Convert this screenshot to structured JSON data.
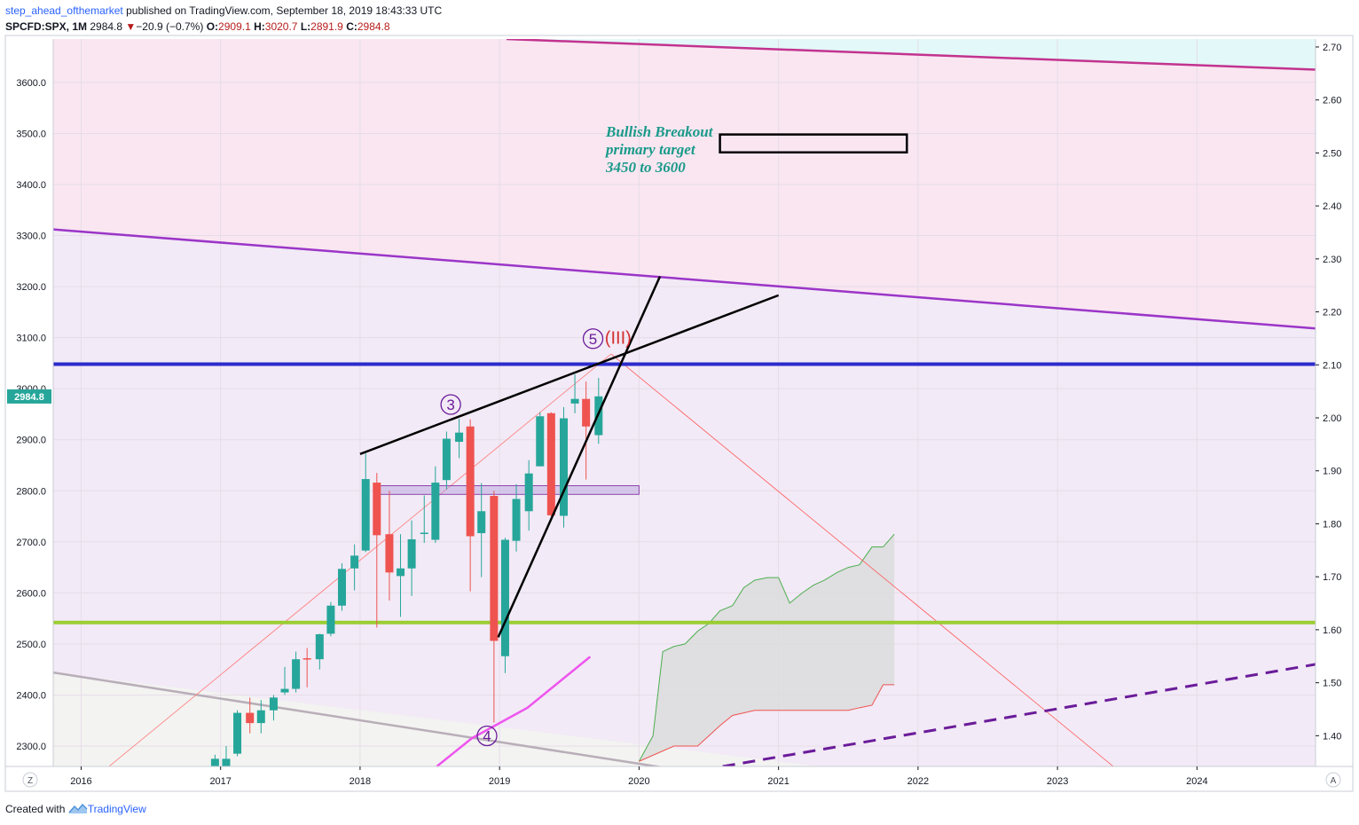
{
  "header": {
    "author": "step_ahead_ofthemarket",
    "published": "published on TradingView.com, September 18, 2019 18:43:33 UTC",
    "symbol": "SPCFD:SPX, 1M",
    "last": "2984.8",
    "change_arrow": "▼",
    "change": "−20.9 (−0.7%)",
    "o_label": "O:",
    "o_value": "2909.1",
    "h_label": "H:",
    "h_value": "3020.7",
    "l_label": "L:",
    "l_value": "2891.9",
    "c_label": "C:",
    "c_value": "2984.8"
  },
  "footer": {
    "created_with": "Created with",
    "brand": "TradingView",
    "logo_icon": "tradingview-logo-icon"
  },
  "buttons": {
    "left": "Z",
    "right": "A"
  },
  "chart_data": {
    "type": "candlestick",
    "timeframe": "1M",
    "xlabel": "",
    "ylabel": "",
    "x_ticks": [
      "2016",
      "2017",
      "2018",
      "2019",
      "2020",
      "2021",
      "2022",
      "2023",
      "2024"
    ],
    "y_ticks_left": [
      "2300.0",
      "2400.0",
      "2500.0",
      "2600.0",
      "2700.0",
      "2800.0",
      "2900.0",
      "3000.0",
      "3100.0",
      "3200.0",
      "3300.0",
      "3400.0",
      "3500.0",
      "3600.0"
    ],
    "y_ticks_right": [
      "1.40",
      "1.50",
      "1.60",
      "1.70",
      "1.80",
      "1.90",
      "2.00",
      "2.10",
      "2.20",
      "2.30",
      "2.40",
      "2.50",
      "2.60",
      "2.70"
    ],
    "ylim_left": [
      2260,
      3685
    ],
    "ylim_right": [
      1.342,
      2.715
    ],
    "xlim": [
      2015.8,
      2024.85
    ],
    "last_price_label": "2984.8",
    "colors": {
      "up": "#26a69a",
      "down": "#ef5350",
      "wick_up": "#26a69a",
      "wick_down": "#ef5350"
    },
    "candles": [
      {
        "t": 2016.96,
        "o": 2260,
        "h": 2283,
        "l": 2260,
        "c": 2275
      },
      {
        "t": 2017.04,
        "o": 2260,
        "h": 2300,
        "l": 2260,
        "c": 2275
      },
      {
        "t": 2017.12,
        "o": 2285,
        "h": 2370,
        "l": 2280,
        "c": 2365
      },
      {
        "t": 2017.21,
        "o": 2365,
        "h": 2395,
        "l": 2325,
        "c": 2345
      },
      {
        "t": 2017.29,
        "o": 2345,
        "h": 2390,
        "l": 2325,
        "c": 2370
      },
      {
        "t": 2017.38,
        "o": 2370,
        "h": 2400,
        "l": 2350,
        "c": 2395
      },
      {
        "t": 2017.46,
        "o": 2405,
        "h": 2455,
        "l": 2400,
        "c": 2412
      },
      {
        "t": 2017.54,
        "o": 2412,
        "h": 2485,
        "l": 2405,
        "c": 2470
      },
      {
        "t": 2017.62,
        "o": 2472,
        "h": 2492,
        "l": 2415,
        "c": 2470
      },
      {
        "t": 2017.71,
        "o": 2470,
        "h": 2520,
        "l": 2450,
        "c": 2519
      },
      {
        "t": 2017.79,
        "o": 2520,
        "h": 2582,
        "l": 2515,
        "c": 2575
      },
      {
        "t": 2017.87,
        "o": 2575,
        "h": 2658,
        "l": 2565,
        "c": 2647
      },
      {
        "t": 2017.96,
        "o": 2648,
        "h": 2695,
        "l": 2605,
        "c": 2673
      },
      {
        "t": 2018.04,
        "o": 2683,
        "h": 2873,
        "l": 2680,
        "c": 2823
      },
      {
        "t": 2018.12,
        "o": 2816,
        "h": 2835,
        "l": 2532,
        "c": 2713
      },
      {
        "t": 2018.21,
        "o": 2715,
        "h": 2800,
        "l": 2585,
        "c": 2640
      },
      {
        "t": 2018.29,
        "o": 2633,
        "h": 2715,
        "l": 2553,
        "c": 2648
      },
      {
        "t": 2018.37,
        "o": 2648,
        "h": 2742,
        "l": 2594,
        "c": 2705
      },
      {
        "t": 2018.46,
        "o": 2718,
        "h": 2791,
        "l": 2698,
        "c": 2718
      },
      {
        "t": 2018.54,
        "o": 2704,
        "h": 2848,
        "l": 2698,
        "c": 2816
      },
      {
        "t": 2018.62,
        "o": 2821,
        "h": 2916,
        "l": 2803,
        "c": 2902
      },
      {
        "t": 2018.71,
        "o": 2896,
        "h": 2941,
        "l": 2864,
        "c": 2914
      },
      {
        "t": 2018.79,
        "o": 2926,
        "h": 2940,
        "l": 2603,
        "c": 2711
      },
      {
        "t": 2018.87,
        "o": 2717,
        "h": 2815,
        "l": 2631,
        "c": 2760
      },
      {
        "t": 2018.96,
        "o": 2790,
        "h": 2800,
        "l": 2346,
        "c": 2506
      },
      {
        "t": 2019.04,
        "o": 2476,
        "h": 2708,
        "l": 2443,
        "c": 2704
      },
      {
        "t": 2019.12,
        "o": 2702,
        "h": 2813,
        "l": 2681,
        "c": 2784
      },
      {
        "t": 2019.21,
        "o": 2760,
        "h": 2860,
        "l": 2722,
        "c": 2834
      },
      {
        "t": 2019.29,
        "o": 2848,
        "h": 2954,
        "l": 2848,
        "c": 2946
      },
      {
        "t": 2019.37,
        "o": 2952,
        "h": 2954,
        "l": 2750,
        "c": 2752
      },
      {
        "t": 2019.46,
        "o": 2751,
        "h": 2964,
        "l": 2728,
        "c": 2942
      },
      {
        "t": 2019.54,
        "o": 2971,
        "h": 3028,
        "l": 2952,
        "c": 2980
      },
      {
        "t": 2019.62,
        "o": 2980,
        "h": 3014,
        "l": 2822,
        "c": 2926
      },
      {
        "t": 2019.71,
        "o": 2909,
        "h": 3021,
        "l": 2892,
        "c": 2985
      }
    ],
    "cloud": {
      "upper": [
        [
          2020.0,
          2270
        ],
        [
          2020.1,
          2320
        ],
        [
          2020.17,
          2485
        ],
        [
          2020.25,
          2495
        ],
        [
          2020.33,
          2500
        ],
        [
          2020.42,
          2525
        ],
        [
          2020.5,
          2540
        ],
        [
          2020.58,
          2565
        ],
        [
          2020.67,
          2575
        ],
        [
          2020.75,
          2610
        ],
        [
          2020.83,
          2625
        ],
        [
          2020.92,
          2630
        ],
        [
          2021.0,
          2630
        ],
        [
          2021.08,
          2580
        ],
        [
          2021.17,
          2600
        ],
        [
          2021.25,
          2615
        ],
        [
          2021.33,
          2625
        ],
        [
          2021.42,
          2640
        ],
        [
          2021.5,
          2650
        ],
        [
          2021.58,
          2655
        ],
        [
          2021.67,
          2690
        ],
        [
          2021.75,
          2690
        ],
        [
          2021.83,
          2715
        ]
      ],
      "lower": [
        [
          2020.0,
          2270
        ],
        [
          2020.25,
          2300
        ],
        [
          2020.42,
          2300
        ],
        [
          2020.58,
          2340
        ],
        [
          2020.67,
          2360
        ],
        [
          2020.83,
          2370
        ],
        [
          2021.0,
          2370
        ],
        [
          2021.33,
          2370
        ],
        [
          2021.5,
          2370
        ],
        [
          2021.58,
          2375
        ],
        [
          2021.67,
          2380
        ],
        [
          2021.75,
          2420
        ],
        [
          2021.83,
          2420
        ]
      ]
    },
    "horizontal_levels": [
      {
        "value": 3048,
        "color": "#2b2bcc"
      },
      {
        "value": 2542,
        "color": "#9acd32"
      }
    ],
    "trend_lines": [
      {
        "from": [
          2018.0,
          2872
        ],
        "to": [
          2021.0,
          3183
        ],
        "color": "#000000",
        "width": 2.5
      },
      {
        "from": [
          2018.99,
          2513
        ],
        "to": [
          2020.15,
          3220
        ],
        "color": "#000000",
        "width": 2.5
      },
      {
        "from": [
          2015.8,
          3312
        ],
        "to": [
          2024.85,
          3118
        ],
        "color": "#9b35c8",
        "width": 2.5
      },
      {
        "from": [
          2019.05,
          3685
        ],
        "to": [
          2024.85,
          3625
        ],
        "color": "#c2338f",
        "width": 2.5
      },
      {
        "from": [
          2015.8,
          2444
        ],
        "to": [
          2021.3,
          2210
        ],
        "color": "#b8aeb8",
        "width": 2.5
      },
      {
        "from": [
          2016.2,
          2260
        ],
        "to": [
          2019.8,
          3068
        ],
        "color": "#ff7a7a",
        "width": 0.8
      },
      {
        "from": [
          2019.8,
          3068
        ],
        "to": [
          2023.4,
          2260
        ],
        "color": "#ff5a5a",
        "width": 0.8
      }
    ],
    "dashed_lines": [
      {
        "from": [
          2020.6,
          2260
        ],
        "to": [
          2024.85,
          2460
        ],
        "color": "#6a1b9a",
        "width": 3
      }
    ],
    "moving_average": {
      "points": [
        [
          2018.55,
          2260
        ],
        [
          2018.8,
          2315
        ],
        [
          2019.2,
          2375
        ],
        [
          2019.65,
          2475
        ]
      ],
      "color": "#ee55ee"
    },
    "zones": [
      {
        "x": [
          2018.1,
          2020.0
        ],
        "y": [
          2793,
          2810
        ],
        "color": "#b39ddb"
      }
    ],
    "target_box": {
      "x": [
        2020.58,
        2021.92
      ],
      "y": [
        3463,
        3498
      ]
    },
    "wave_labels": [
      {
        "text": "3",
        "x": 2018.65,
        "y": 2969,
        "circled": true
      },
      {
        "text": "4",
        "x": 2018.91,
        "y": 2320,
        "circled": true
      },
      {
        "text": "5",
        "x": 2019.67,
        "y": 3098,
        "circled": true
      },
      {
        "text": "(III)",
        "x": 2019.85,
        "y": 3100,
        "circled": false
      }
    ],
    "annotation": {
      "lines": [
        "Bullish Breakout",
        "primary target",
        "3450 to 3600"
      ],
      "color": "#1a9a8a"
    }
  }
}
